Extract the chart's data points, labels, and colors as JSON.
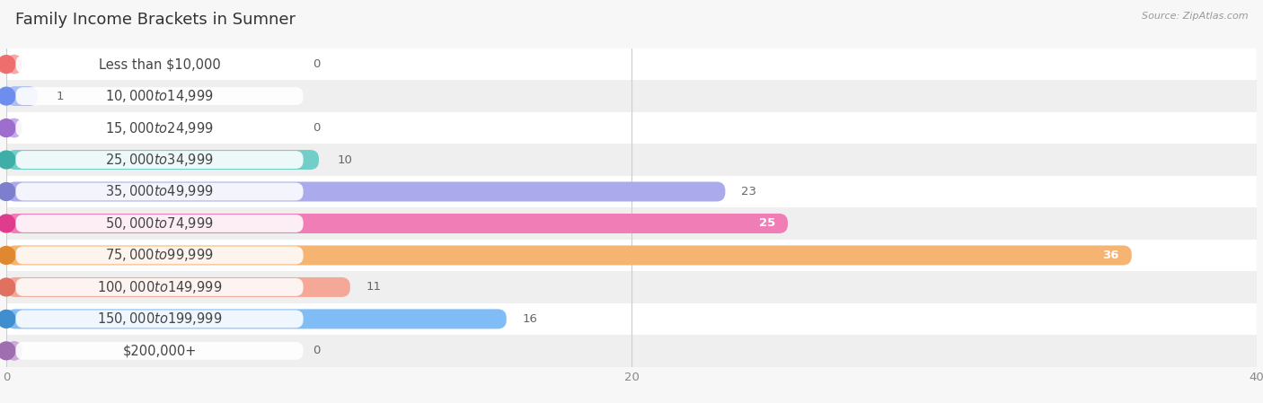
{
  "title": "Family Income Brackets in Sumner",
  "source": "Source: ZipAtlas.com",
  "categories": [
    "Less than $10,000",
    "$10,000 to $14,999",
    "$15,000 to $24,999",
    "$25,000 to $34,999",
    "$35,000 to $49,999",
    "$50,000 to $74,999",
    "$75,000 to $99,999",
    "$100,000 to $149,999",
    "$150,000 to $199,999",
    "$200,000+"
  ],
  "values": [
    0,
    1,
    0,
    10,
    23,
    25,
    36,
    11,
    16,
    0
  ],
  "bar_colors": [
    "#f5aaaa",
    "#aabff5",
    "#c8aaf0",
    "#72cec9",
    "#aaaaec",
    "#f07db5",
    "#f5b472",
    "#f5a898",
    "#80bcf5",
    "#ccaad8"
  ],
  "dot_colors": [
    "#ee6e6e",
    "#6e8eee",
    "#9e6ece",
    "#3eaea8",
    "#7e7ece",
    "#e03c8e",
    "#e08830",
    "#e07060",
    "#3e8ed0",
    "#9e6eb0"
  ],
  "bg_color": "#f7f7f7",
  "row_bg_even": "#ffffff",
  "row_bg_odd": "#efefef",
  "xlim": [
    0,
    40
  ],
  "xticks": [
    0,
    20,
    40
  ],
  "title_fontsize": 13,
  "label_fontsize": 10.5,
  "value_fontsize": 9.5,
  "bar_height": 0.62
}
